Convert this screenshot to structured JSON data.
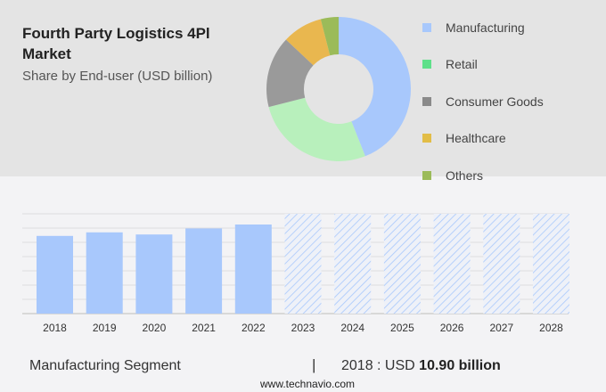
{
  "header": {
    "title": "Fourth Party Logistics 4Pl Market",
    "subtitle": "Share by End-user (USD billion)"
  },
  "chart_data": [
    {
      "type": "pie",
      "donut": true,
      "slices": [
        {
          "label": "Manufacturing",
          "value": 44,
          "color": "#a8c8fc"
        },
        {
          "label": "Retail",
          "value": 27,
          "color": "#b8f0bc"
        },
        {
          "label": "Consumer Goods",
          "value": 16,
          "color": "#9a9a9a"
        },
        {
          "label": "Healthcare",
          "value": 9,
          "color": "#e9b74f"
        },
        {
          "label": "Others",
          "value": 4,
          "color": "#9bbb59"
        }
      ],
      "legend_colors": [
        "#a8c8fc",
        "#5fe08a",
        "#8a8a8a",
        "#e2bd47",
        "#9bbb59"
      ],
      "legend": "right"
    },
    {
      "type": "bar",
      "categories": [
        "2018",
        "2019",
        "2020",
        "2021",
        "2022",
        "2023",
        "2024",
        "2025",
        "2026",
        "2027",
        "2028"
      ],
      "values": [
        10.9,
        11.4,
        11.1,
        11.95,
        12.5,
        null,
        null,
        null,
        null,
        null,
        null
      ],
      "forecast": [
        "2023",
        "2024",
        "2025",
        "2026",
        "2027",
        "2028"
      ],
      "ylim": [
        0,
        14
      ],
      "grid": true,
      "color": "#a8c8fc"
    }
  ],
  "footer": {
    "segment": "Manufacturing Segment",
    "separator": "|",
    "year_prefix": "2018 : USD",
    "value": "10.90 billion",
    "site": "www.technavio.com"
  }
}
